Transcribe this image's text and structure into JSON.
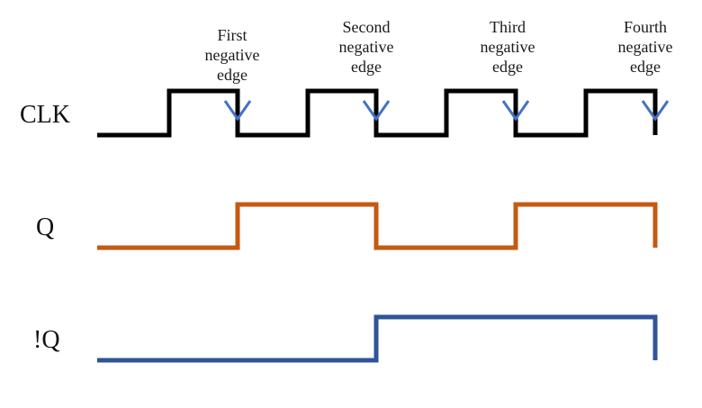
{
  "edge_labels": [
    {
      "line1": "First",
      "line2": "negative",
      "line3": "edge"
    },
    {
      "line1": "Second",
      "line2": "negative",
      "line3": "edge"
    },
    {
      "line1": "Third",
      "line2": "negative",
      "line3": "edge"
    },
    {
      "line1": "Fourth",
      "line2": "negative",
      "line3": "edge"
    }
  ],
  "signals": {
    "clk": {
      "label": "CLK",
      "color": "#000000"
    },
    "q": {
      "label": "Q",
      "color": "#c55a11"
    },
    "qbar": {
      "label": "!Q",
      "color": "#2f5597"
    }
  },
  "marker_color": "#4472c4"
}
